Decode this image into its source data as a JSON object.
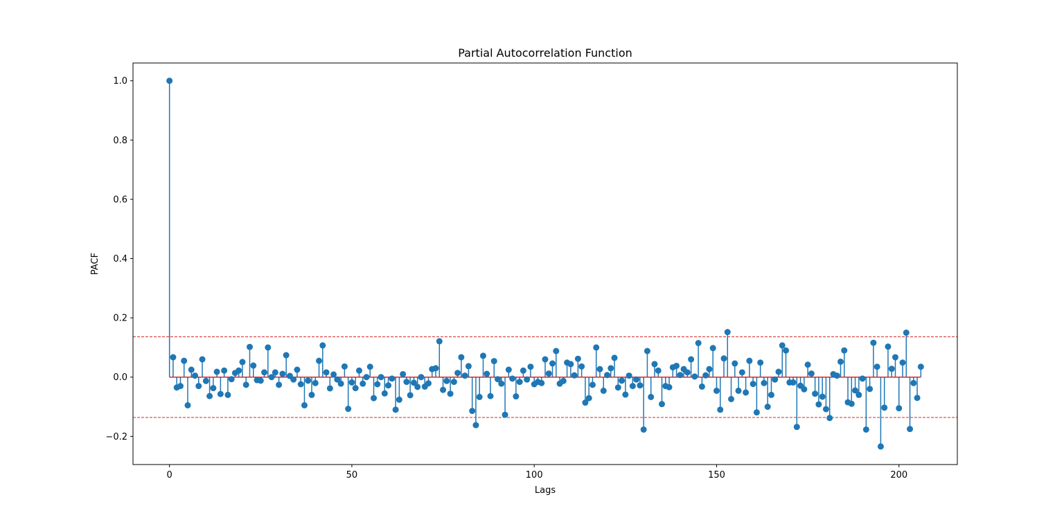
{
  "chart_data": {
    "type": "stem",
    "title": "Partial Autocorrelation Function",
    "xlabel": "Lags",
    "ylabel": "PACF",
    "xlim": [
      -10,
      216
    ],
    "ylim": [
      -0.295,
      1.06
    ],
    "xticks": [
      0,
      50,
      100,
      150,
      200
    ],
    "yticks": [
      -0.2,
      0.0,
      0.2,
      0.4,
      0.6,
      0.8,
      1.0
    ],
    "ytick_labels": [
      "−0.2",
      "0.0",
      "0.2",
      "0.4",
      "0.6",
      "0.8",
      "1.0"
    ],
    "xtick_labels": [
      "0",
      "50",
      "100",
      "150",
      "200"
    ],
    "confidence_bound": 0.136,
    "colors": {
      "stem": "#1f77b4",
      "baseline": "#d62728",
      "bound": "#d62728"
    },
    "series": [
      {
        "name": "PACF",
        "x": [
          0,
          1,
          2,
          3,
          4,
          5,
          6,
          7,
          8,
          9,
          10,
          11,
          12,
          13,
          14,
          15,
          16,
          17,
          18,
          19,
          20,
          21,
          22,
          23,
          24,
          25,
          26,
          27,
          28,
          29,
          30,
          31,
          32,
          33,
          34,
          35,
          36,
          37,
          38,
          39,
          40,
          41,
          42,
          43,
          44,
          45,
          46,
          47,
          48,
          49,
          50,
          51,
          52,
          53,
          54,
          55,
          56,
          57,
          58,
          59,
          60,
          61,
          62,
          63,
          64,
          65,
          66,
          67,
          68,
          69,
          70,
          71,
          72,
          73,
          74,
          75,
          76,
          77,
          78,
          79,
          80,
          81,
          82,
          83,
          84,
          85,
          86,
          87,
          88,
          89,
          90,
          91,
          92,
          93,
          94,
          95,
          96,
          97,
          98,
          99,
          100,
          101,
          102,
          103,
          104,
          105,
          106,
          107,
          108,
          109,
          110,
          111,
          112,
          113,
          114,
          115,
          116,
          117,
          118,
          119,
          120,
          121,
          122,
          123,
          124,
          125,
          126,
          127,
          128,
          129,
          130,
          131,
          132,
          133,
          134,
          135,
          136,
          137,
          138,
          139,
          140,
          141,
          142,
          143,
          144,
          145,
          146,
          147,
          148,
          149,
          150,
          151,
          152,
          153,
          154,
          155,
          156,
          157,
          158,
          159,
          160,
          161,
          162,
          163,
          164,
          165,
          166,
          167,
          168,
          169,
          170,
          171,
          172,
          173,
          174,
          175,
          176,
          177,
          178,
          179,
          180,
          181,
          182,
          183,
          184,
          185,
          186,
          187,
          188,
          189,
          190,
          191,
          192,
          193,
          194,
          195,
          196,
          197,
          198,
          199,
          200,
          201,
          202,
          203,
          204,
          205,
          206
        ],
        "values": [
          1.0,
          0.067,
          -0.035,
          -0.03,
          0.055,
          -0.095,
          0.025,
          0.005,
          -0.03,
          0.06,
          -0.013,
          -0.064,
          -0.037,
          0.018,
          -0.057,
          0.022,
          -0.06,
          -0.007,
          0.014,
          0.022,
          0.051,
          -0.026,
          0.102,
          0.039,
          -0.01,
          -0.012,
          0.016,
          0.1,
          0.0,
          0.016,
          -0.026,
          0.011,
          0.074,
          0.004,
          -0.008,
          0.025,
          -0.024,
          -0.095,
          -0.012,
          -0.06,
          -0.02,
          0.055,
          0.107,
          0.016,
          -0.038,
          0.009,
          -0.008,
          -0.022,
          0.036,
          -0.107,
          -0.018,
          -0.037,
          0.022,
          -0.022,
          0.0,
          0.035,
          -0.071,
          -0.024,
          0.0,
          -0.055,
          -0.028,
          -0.005,
          -0.11,
          -0.076,
          0.01,
          -0.016,
          -0.061,
          -0.019,
          -0.033,
          0.0,
          -0.032,
          -0.021,
          0.027,
          0.03,
          0.121,
          -0.043,
          -0.013,
          -0.056,
          -0.016,
          0.014,
          0.067,
          0.005,
          0.037,
          -0.114,
          -0.162,
          -0.067,
          0.072,
          0.011,
          -0.064,
          0.054,
          -0.007,
          -0.022,
          -0.127,
          0.025,
          -0.005,
          -0.065,
          -0.016,
          0.022,
          -0.008,
          0.035,
          -0.024,
          -0.016,
          -0.02,
          0.06,
          0.012,
          0.046,
          0.088,
          -0.022,
          -0.013,
          0.049,
          0.044,
          0.006,
          0.062,
          0.036,
          -0.086,
          -0.071,
          -0.026,
          0.1,
          0.027,
          -0.046,
          0.007,
          0.03,
          0.065,
          -0.035,
          -0.012,
          -0.059,
          0.005,
          -0.03,
          -0.008,
          -0.028,
          -0.177,
          0.088,
          -0.067,
          0.044,
          0.022,
          -0.091,
          -0.03,
          -0.034,
          0.033,
          0.038,
          0.007,
          0.027,
          0.016,
          0.06,
          0.002,
          0.115,
          -0.032,
          0.006,
          0.027,
          0.098,
          -0.046,
          -0.11,
          0.063,
          0.152,
          -0.074,
          0.046,
          -0.046,
          0.016,
          -0.052,
          0.055,
          -0.023,
          -0.119,
          0.049,
          -0.02,
          -0.1,
          -0.06,
          -0.008,
          0.018,
          0.107,
          0.09,
          -0.018,
          -0.018,
          -0.168,
          -0.029,
          -0.041,
          0.042,
          0.012,
          -0.056,
          -0.092,
          -0.066,
          -0.108,
          -0.138,
          0.01,
          0.005,
          0.052,
          0.09,
          -0.085,
          -0.09,
          -0.045,
          -0.06,
          -0.005,
          -0.177,
          -0.04,
          0.116,
          0.035,
          -0.234,
          -0.103,
          0.103,
          0.028,
          0.067,
          -0.105,
          0.049,
          0.15,
          -0.175,
          -0.02,
          -0.07,
          0.035
        ]
      }
    ]
  }
}
